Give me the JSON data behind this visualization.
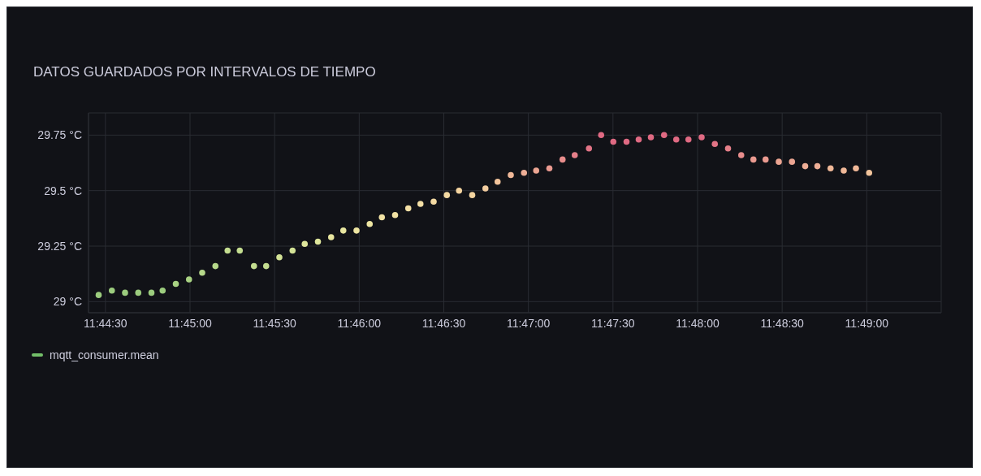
{
  "chart_data": {
    "type": "scatter",
    "title": "DATOS GUARDADOS POR INTERVALOS DE TIEMPO",
    "x": [
      11.741,
      11.7423,
      11.7436,
      11.7449,
      11.7462,
      11.7473,
      11.7486,
      11.7499,
      11.7512,
      11.7525,
      11.7537,
      11.7549,
      11.7563,
      11.7575,
      11.7588,
      11.7601,
      11.7613,
      11.7626,
      11.7639,
      11.7651,
      11.7664,
      11.7677,
      11.7689,
      11.7702,
      11.7715,
      11.7727,
      11.774,
      11.7753,
      11.7765,
      11.7778,
      11.7791,
      11.7803,
      11.7816,
      11.7829,
      11.7841,
      11.7854,
      11.7867,
      11.7879,
      11.7893,
      11.7905,
      11.7917,
      11.793,
      11.7942,
      11.7954,
      11.7967,
      11.7979,
      11.7991,
      11.8004,
      11.8017,
      11.803,
      11.8043,
      11.8055,
      11.8067,
      11.808,
      11.8093,
      11.8106,
      11.8118,
      11.8131,
      11.8144,
      11.8156,
      11.8169
    ],
    "series": [
      {
        "name": "mqtt_consumer.mean",
        "color": "#73bf69",
        "values": [
          29.03,
          29.05,
          29.04,
          29.04,
          29.04,
          29.05,
          29.08,
          29.1,
          29.13,
          29.16,
          29.23,
          29.23,
          29.16,
          29.16,
          29.2,
          29.23,
          29.26,
          29.27,
          29.29,
          29.32,
          29.32,
          29.35,
          29.38,
          29.39,
          29.42,
          29.44,
          29.45,
          29.48,
          29.5,
          29.48,
          29.51,
          29.54,
          29.57,
          29.58,
          29.59,
          29.6,
          29.64,
          29.66,
          29.69,
          29.75,
          29.72,
          29.72,
          29.73,
          29.74,
          29.75,
          29.73,
          29.73,
          29.74,
          29.71,
          29.69,
          29.66,
          29.64,
          29.64,
          29.63,
          29.63,
          29.61,
          29.61,
          29.6,
          29.59,
          29.6,
          29.58
        ],
        "colors": [
          "#9ccc7e",
          "#9ccc7e",
          "#9ccc7e",
          "#9ccc7e",
          "#9ccc7e",
          "#9ccc7e",
          "#a9d283",
          "#a9d283",
          "#b6d88a",
          "#b6d88a",
          "#c4dd90",
          "#c4dd90",
          "#c4dd90",
          "#c4dd90",
          "#d3e296",
          "#d3e296",
          "#dfe69c",
          "#dfe69c",
          "#e8e6a0",
          "#e8e6a0",
          "#eee5a2",
          "#eee5a2",
          "#f1e2a4",
          "#f1e2a4",
          "#f3dfa5",
          "#f3dfa5",
          "#f4daa3",
          "#f4daa3",
          "#f4d4a0",
          "#f4d4a0",
          "#f3cda0",
          "#f2c49c",
          "#f0b898",
          "#eeae96",
          "#eca592",
          "#ea9a90",
          "#e88d8c",
          "#e57f89",
          "#e27486",
          "#e06a83",
          "#e06a83",
          "#e06a83",
          "#e06a83",
          "#e06a83",
          "#e06a83",
          "#e06a83",
          "#e06a83",
          "#e06a83",
          "#e27486",
          "#e57f89",
          "#e88d8c",
          "#ea9a90",
          "#ea9a90",
          "#eca592",
          "#eca592",
          "#eeae96",
          "#eeae96",
          "#f0b898",
          "#f0b898",
          "#f0b898",
          "#f2c49c"
        ]
      }
    ],
    "xlim": [
      11.74,
      11.824
    ],
    "xticks": [
      {
        "value": 11.741667,
        "label": "11:44:30"
      },
      {
        "value": 11.75,
        "label": "11:45:00"
      },
      {
        "value": 11.758333,
        "label": "11:45:30"
      },
      {
        "value": 11.766667,
        "label": "11:46:00"
      },
      {
        "value": 11.775,
        "label": "11:46:30"
      },
      {
        "value": 11.783333,
        "label": "11:47:00"
      },
      {
        "value": 11.791667,
        "label": "11:47:30"
      },
      {
        "value": 11.8,
        "label": "11:48:00"
      },
      {
        "value": 11.808333,
        "label": "11:48:30"
      },
      {
        "value": 11.816667,
        "label": "11:49:00"
      }
    ],
    "ylim": [
      28.95,
      29.85
    ],
    "yticks": [
      {
        "value": 29,
        "label": "29 °C"
      },
      {
        "value": 29.25,
        "label": "29.25 °C"
      },
      {
        "value": 29.5,
        "label": "29.5 °C"
      },
      {
        "value": 29.75,
        "label": "29.75 °C"
      }
    ],
    "grid": true,
    "legend": "bottom left",
    "marker": "circle"
  }
}
